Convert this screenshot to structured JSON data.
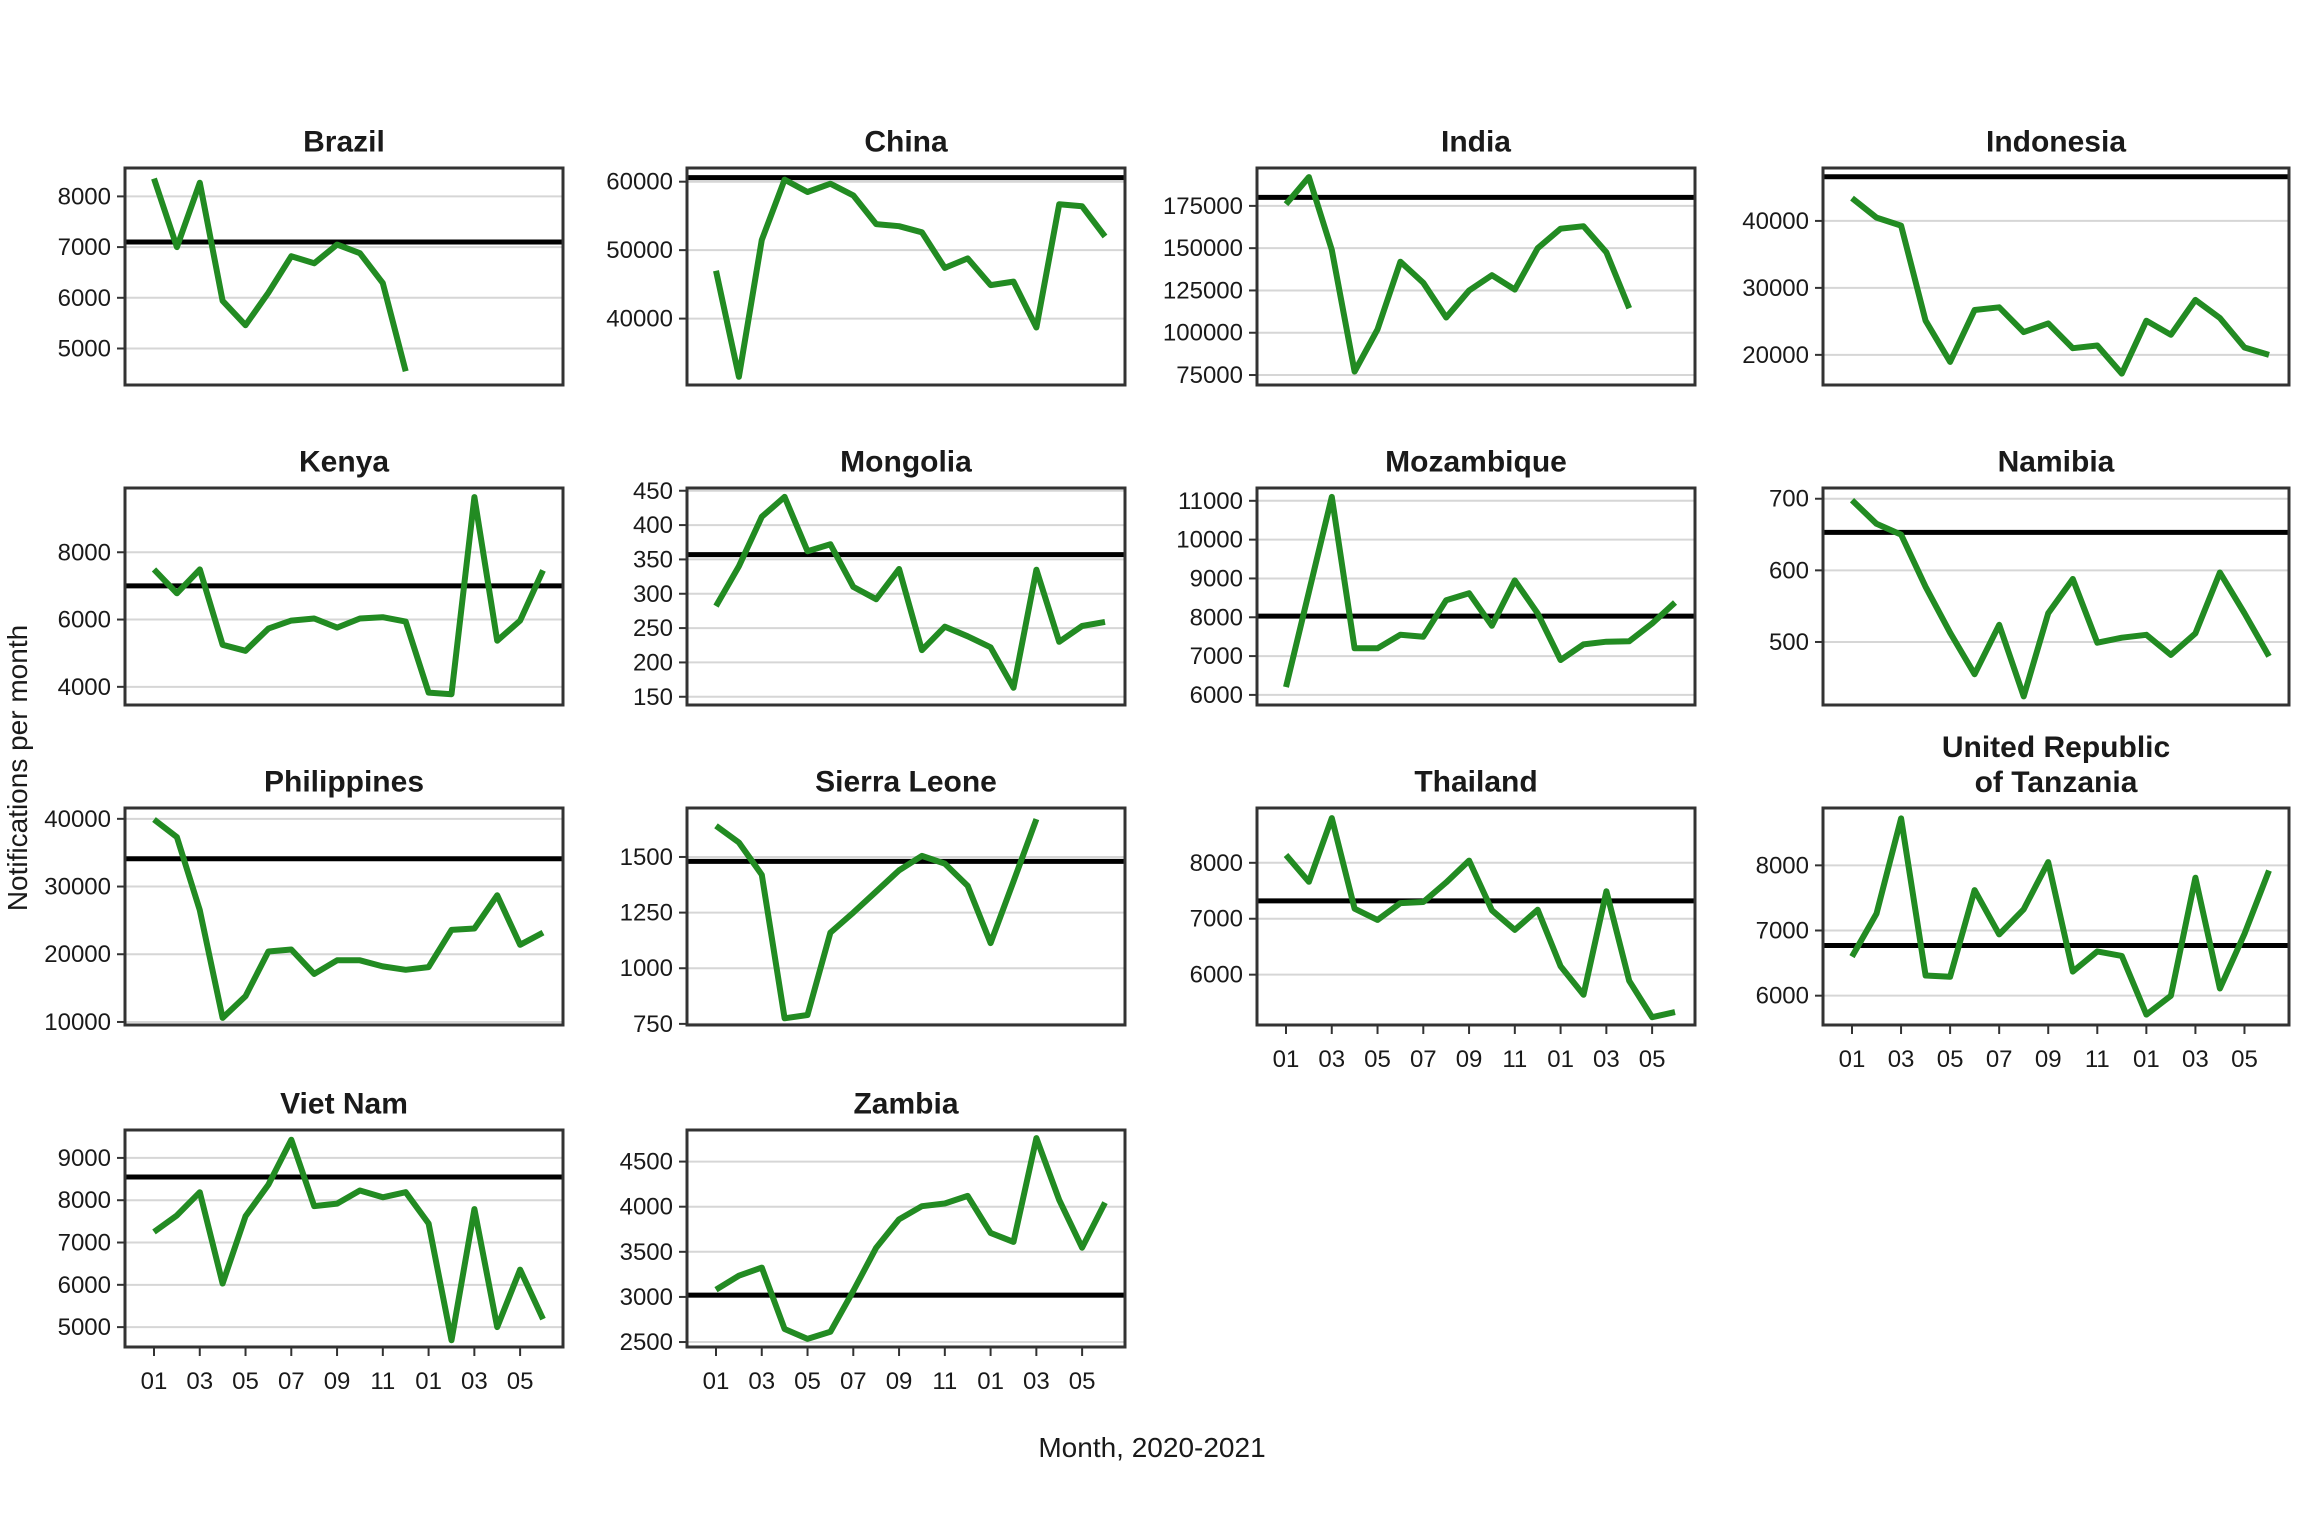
{
  "figure": {
    "y_axis_title": "Notifications per month",
    "x_axis_title": "Month, 2020-2021"
  },
  "colors": {
    "line": "#228B22",
    "ref_line": "#000000",
    "grid": "#d6d6d6",
    "border": "#333333",
    "text": "#1a1a1a"
  },
  "chart_data": {
    "type": "line",
    "x_label_sequence": [
      "01",
      "03",
      "05",
      "07",
      "09",
      "11",
      "01",
      "03",
      "05"
    ],
    "x_range_months": 18,
    "legend": "none",
    "grid": "horizontal-major",
    "series_note": "green line = monthly TB notifications; black horizontal line = pre-pandemic reference level",
    "panels": [
      {
        "title": "Brazil",
        "row": 0,
        "col": 0,
        "show_x_labels": false,
        "ylim": [
          4280,
          8560
        ],
        "yticks": [
          5000,
          6000,
          7000,
          8000
        ],
        "ref": 7100,
        "values": [
          8350,
          7000,
          8270,
          5940,
          5460,
          6100,
          6820,
          6680,
          7050,
          6880,
          6290,
          4550
        ]
      },
      {
        "title": "China",
        "row": 0,
        "col": 1,
        "show_x_labels": false,
        "ylim": [
          30300,
          62000
        ],
        "yticks": [
          40000,
          50000,
          60000
        ],
        "ref": 60600,
        "values": [
          47000,
          31500,
          51500,
          60300,
          58500,
          59700,
          58000,
          53800,
          53500,
          52600,
          47400,
          48800,
          44900,
          45400,
          38700,
          56700,
          56400,
          52000
        ]
      },
      {
        "title": "India",
        "row": 0,
        "col": 2,
        "show_x_labels": false,
        "ylim": [
          69100,
          197400
        ],
        "yticks": [
          75000,
          100000,
          125000,
          150000,
          175000
        ],
        "ref": 180000,
        "values": [
          176000,
          192000,
          149000,
          77000,
          102000,
          142000,
          129500,
          109000,
          125000,
          134000,
          125500,
          150000,
          161500,
          163000,
          147500,
          114500
        ]
      },
      {
        "title": "Indonesia",
        "row": 0,
        "col": 3,
        "show_x_labels": false,
        "ylim": [
          15500,
          47900
        ],
        "yticks": [
          20000,
          30000,
          40000
        ],
        "ref": 46600,
        "values": [
          43400,
          40500,
          39300,
          25100,
          18950,
          26700,
          27100,
          23400,
          24700,
          21000,
          21400,
          17200,
          25100,
          23000,
          28200,
          25500,
          21100,
          20000
        ]
      },
      {
        "title": "Kenya",
        "row": 1,
        "col": 0,
        "show_x_labels": false,
        "ylim": [
          3460,
          9910
        ],
        "yticks": [
          4000,
          6000,
          8000
        ],
        "ref": 7000,
        "values": [
          7490,
          6780,
          7490,
          5250,
          5070,
          5730,
          5970,
          6030,
          5760,
          6030,
          6070,
          5940,
          3830,
          3780,
          9640,
          5370,
          5970,
          7460
        ]
      },
      {
        "title": "Mongolia",
        "row": 1,
        "col": 1,
        "show_x_labels": false,
        "ylim": [
          138,
          454
        ],
        "yticks": [
          150,
          200,
          250,
          300,
          350,
          400,
          450
        ],
        "ref": 357,
        "values": [
          282,
          340,
          412,
          441,
          362,
          372,
          310,
          292,
          336,
          218,
          252,
          238,
          222,
          163,
          335,
          230,
          253,
          259
        ]
      },
      {
        "title": "Mozambique",
        "row": 1,
        "col": 2,
        "show_x_labels": false,
        "ylim": [
          5740,
          11330
        ],
        "yticks": [
          6000,
          7000,
          8000,
          9000,
          10000,
          11000
        ],
        "ref": 8030,
        "values": [
          6200,
          8650,
          11100,
          7200,
          7200,
          7550,
          7500,
          8440,
          8620,
          7780,
          8950,
          8100,
          6900,
          7300,
          7370,
          7380,
          7840,
          8380
        ]
      },
      {
        "title": "Namibia",
        "row": 1,
        "col": 3,
        "show_x_labels": false,
        "ylim": [
          412,
          715
        ],
        "yticks": [
          500,
          600,
          700
        ],
        "ref": 653,
        "values": [
          698,
          665,
          650,
          577,
          513,
          455,
          524,
          424,
          540,
          588,
          499,
          506,
          510,
          482,
          512,
          597,
          540,
          480
        ]
      },
      {
        "title": "Philippines",
        "row": 2,
        "col": 0,
        "show_x_labels": false,
        "ylim": [
          9550,
          41600
        ],
        "yticks": [
          10000,
          20000,
          30000,
          40000
        ],
        "ref": 34100,
        "values": [
          39900,
          37300,
          26500,
          10600,
          13800,
          20400,
          20700,
          17100,
          19100,
          19100,
          18200,
          17700,
          18100,
          23600,
          23800,
          28700,
          21400,
          23200
        ]
      },
      {
        "title": "Sierra Leone",
        "row": 2,
        "col": 1,
        "show_x_labels": false,
        "ylim": [
          745,
          1720
        ],
        "yticks": [
          750,
          1000,
          1250,
          1500
        ],
        "ref": 1480,
        "values": [
          1640,
          1565,
          1420,
          775,
          790,
          1160,
          1250,
          1345,
          1440,
          1505,
          1470,
          1370,
          1113,
          1390,
          1670
        ]
      },
      {
        "title": "Thailand",
        "row": 2,
        "col": 2,
        "show_x_labels": true,
        "ylim": [
          5100,
          8980
        ],
        "yticks": [
          6000,
          7000,
          8000
        ],
        "ref": 7320,
        "values": [
          8140,
          7660,
          8800,
          7180,
          6980,
          7280,
          7300,
          7650,
          8040,
          7150,
          6800,
          7160,
          6150,
          5640,
          7490,
          5890,
          5240,
          5330
        ]
      },
      {
        "title": "United Republic\nof Tanzania",
        "row": 2,
        "col": 3,
        "show_x_labels": true,
        "ylim": [
          5550,
          8880
        ],
        "yticks": [
          6000,
          7000,
          8000
        ],
        "ref": 6770,
        "values": [
          6600,
          7260,
          8720,
          6310,
          6290,
          7620,
          6940,
          7325,
          8050,
          6370,
          6680,
          6610,
          5710,
          6000,
          7810,
          6110,
          6950,
          7920
        ]
      },
      {
        "title": "Viet Nam",
        "row": 3,
        "col": 0,
        "show_x_labels": true,
        "ylim": [
          4530,
          9660
        ],
        "yticks": [
          5000,
          6000,
          7000,
          8000,
          9000
        ],
        "ref": 8550,
        "values": [
          7250,
          7640,
          8190,
          6030,
          7620,
          8370,
          9430,
          7860,
          7920,
          8230,
          8070,
          8190,
          7450,
          4690,
          7790,
          5000,
          6360,
          5190
        ]
      },
      {
        "title": "Zambia",
        "row": 3,
        "col": 1,
        "show_x_labels": true,
        "ylim": [
          2445,
          4850
        ],
        "yticks": [
          2500,
          3000,
          3500,
          4000,
          4500
        ],
        "ref": 3020,
        "values": [
          3080,
          3235,
          3325,
          2645,
          2535,
          2613,
          3067,
          3545,
          3860,
          4005,
          4035,
          4120,
          3710,
          3610,
          4760,
          4075,
          3545,
          4045
        ]
      }
    ]
  }
}
